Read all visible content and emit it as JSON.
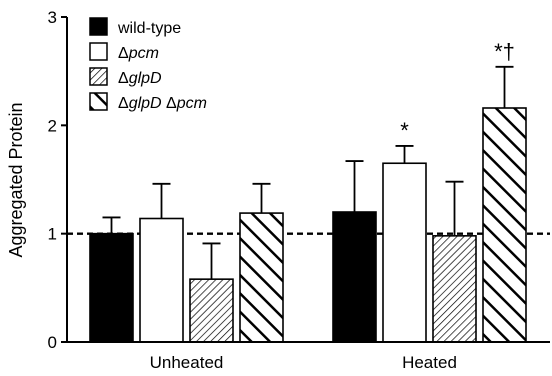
{
  "chart_data": {
    "type": "bar",
    "ylabel": "Aggregated Protein",
    "xlabel": "",
    "ylim": [
      0,
      3
    ],
    "yticks": [
      "0",
      "1",
      "2",
      "3"
    ],
    "categories": [
      "Unheated",
      "Heated"
    ],
    "reference_line": 1,
    "legend_position": "top-left",
    "series": [
      {
        "name": "wild-type",
        "pattern": "solid-black",
        "values": [
          1.0,
          1.2
        ],
        "errors": [
          0.15,
          0.47
        ]
      },
      {
        "name": "Δpcm",
        "pattern": "white",
        "values": [
          1.14,
          1.65
        ],
        "errors": [
          0.32,
          0.16
        ]
      },
      {
        "name": "ΔglpD",
        "pattern": "fine-diagonal-hatch",
        "values": [
          0.58,
          0.98
        ],
        "errors": [
          0.33,
          0.5
        ]
      },
      {
        "name": "ΔglpD Δpcm",
        "pattern": "bold-diagonal-hatch",
        "values": [
          1.19,
          2.16
        ],
        "errors": [
          0.27,
          0.38
        ]
      }
    ],
    "annotations": [
      {
        "series": 1,
        "category": 1,
        "text": "*"
      },
      {
        "series": 3,
        "category": 1,
        "text": "*†"
      }
    ]
  },
  "legend": [
    {
      "prefix": "",
      "italic": "",
      "rest": "wild-type"
    },
    {
      "prefix": "Δ",
      "italic": "pcm",
      "rest": ""
    },
    {
      "prefix": "Δ",
      "italic": "glpD",
      "rest": ""
    },
    {
      "prefix": "Δ",
      "italic": "glpD",
      "rest": " Δ",
      "italic2": "pcm"
    }
  ]
}
